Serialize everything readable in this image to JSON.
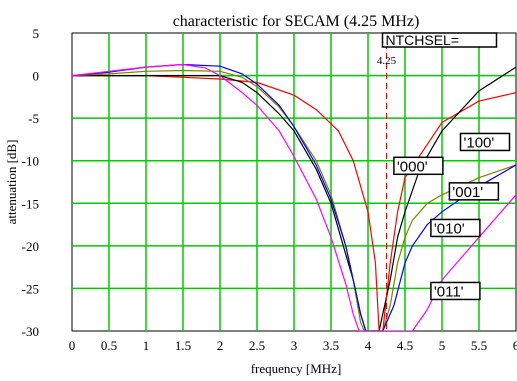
{
  "chart_data": {
    "type": "line",
    "title": "characteristic for SECAM (4.25 MHz)",
    "xlabel": "frequency [MHz]",
    "ylabel": "attenuation [dB]",
    "xlim": [
      0,
      6
    ],
    "ylim": [
      -30,
      5
    ],
    "xticks": [
      0,
      0.5,
      1,
      1.5,
      2,
      2.5,
      3,
      3.5,
      4,
      4.5,
      5,
      5.5,
      6
    ],
    "xtick_labels": [
      "0",
      "0.5",
      "1",
      "1.5",
      "2",
      "2.5",
      "3",
      "3.5",
      "4",
      "4.5",
      "5",
      "5.5",
      "6"
    ],
    "yticks": [
      5,
      0,
      -5,
      -10,
      -15,
      -20,
      -25,
      -30
    ],
    "ytick_labels": [
      "5",
      "0",
      "-5",
      "-10",
      "-15",
      "-20",
      "-25",
      "-30"
    ],
    "grid": true,
    "grid_color": "#00cc00",
    "marker": {
      "x": 4.25,
      "label": "4.25",
      "header": "NTCHSEL=",
      "color": "#ee0000"
    },
    "series": [
      {
        "name": "'000'",
        "color": "#ff0000",
        "x": [
          0,
          0.5,
          1,
          1.5,
          2,
          2.5,
          3,
          3.3,
          3.6,
          3.8,
          4.0,
          4.1,
          4.15,
          4.2,
          4.3,
          4.4,
          4.5,
          5,
          5.5,
          6
        ],
        "y": [
          0,
          0,
          0,
          -0.2,
          -0.4,
          -0.8,
          -2.3,
          -4,
          -6.5,
          -10,
          -16,
          -22,
          -30,
          -30,
          -22,
          -16,
          -12,
          -5.5,
          -3,
          -2
        ]
      },
      {
        "name": "'100'",
        "color": "#000000",
        "x": [
          0,
          0.5,
          1,
          1.5,
          2,
          2.3,
          2.5,
          2.8,
          3,
          3.3,
          3.5,
          3.7,
          3.8,
          3.9,
          3.97,
          4.15,
          4.3,
          4.4,
          4.5,
          4.7,
          5.0,
          5.5,
          6
        ],
        "y": [
          0,
          0,
          0,
          0,
          0,
          -0.8,
          -2,
          -4.5,
          -6.5,
          -11,
          -15,
          -21,
          -24,
          -28,
          -30,
          -30,
          -24,
          -19,
          -16,
          -11,
          -6.5,
          -1.8,
          1
        ]
      },
      {
        "name": "'001'",
        "color": "#808000",
        "x": [
          0,
          0.5,
          1,
          1.5,
          2,
          2.3,
          2.5,
          2.8,
          3,
          3.3,
          3.5,
          3.7,
          3.8,
          3.9,
          3.95,
          4.2,
          4.3,
          4.4,
          4.5,
          4.6,
          4.8,
          5.0,
          5.5,
          6
        ],
        "y": [
          0,
          0.2,
          0.5,
          0.6,
          0.5,
          -0.2,
          -1.3,
          -3.7,
          -6,
          -10,
          -14,
          -20,
          -24,
          -29,
          -30,
          -30,
          -27,
          -22,
          -19,
          -17,
          -15,
          -14,
          -12,
          -10.5
        ]
      },
      {
        "name": "'010'",
        "color": "#0000ff",
        "x": [
          0,
          0.5,
          1,
          1.5,
          2,
          2.3,
          2.5,
          2.8,
          3,
          3.3,
          3.5,
          3.7,
          3.8,
          3.9,
          3.97,
          4.2,
          4.35,
          4.5,
          4.6,
          4.8,
          5.0,
          5.5,
          6
        ],
        "y": [
          0,
          0.4,
          1,
          1.3,
          1.1,
          0.2,
          -1,
          -3.5,
          -6,
          -10.5,
          -14.5,
          -20,
          -24,
          -28,
          -30,
          -30,
          -27,
          -22,
          -20,
          -17.5,
          -16,
          -13,
          -10.5
        ]
      },
      {
        "name": "'011'",
        "color": "#ff00ff",
        "x": [
          0,
          0.5,
          1,
          1.5,
          1.8,
          2,
          2.3,
          2.5,
          2.8,
          3,
          3.3,
          3.5,
          3.7,
          3.8,
          3.88,
          4.6,
          4.8,
          5,
          5.5,
          6
        ],
        "y": [
          0,
          0.5,
          1,
          1.3,
          0.9,
          0,
          -2,
          -3.5,
          -6.5,
          -9.5,
          -14.5,
          -19,
          -24.5,
          -28,
          -30,
          -30,
          -27.5,
          -24,
          -19,
          -14
        ]
      }
    ],
    "series_label_anchors": [
      {
        "series": 0,
        "x": 4.35,
        "y": -9.6
      },
      {
        "series": 1,
        "x": 5.25,
        "y": -6.8
      },
      {
        "series": 2,
        "x": 5.1,
        "y": -12.6
      },
      {
        "series": 3,
        "x": 4.85,
        "y": -16.9
      },
      {
        "series": 4,
        "x": 4.85,
        "y": -24.3
      }
    ]
  }
}
